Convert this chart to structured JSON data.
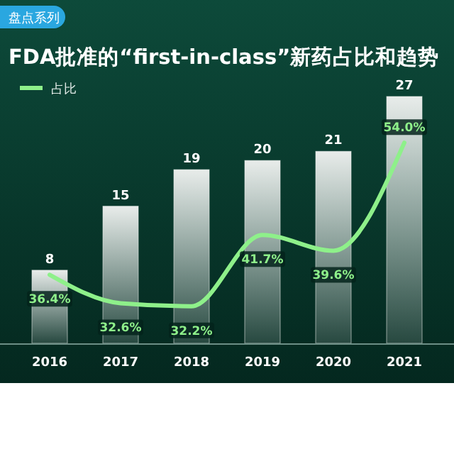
{
  "chart_data": {
    "type": "bar",
    "title": "FDA批准的“first-in-class”新药占比和趋势",
    "annotations": [
      "盘点系列"
    ],
    "categories": [
      "2016",
      "2017",
      "2018",
      "2019",
      "2020",
      "2021"
    ],
    "series": [
      {
        "color": "#e8ecea",
        "values": [
          8,
          15,
          19,
          20,
          21,
          27
        ]
      },
      {
        "type": "line",
        "name": "占比",
        "axis": "y2",
        "color": "#8ef08a",
        "values": [
          36.4,
          32.6,
          32.2,
          41.7,
          39.6,
          54.0
        ],
        "value_labels": [
          "36.4%",
          "32.6%",
          "32.2%",
          "41.7%",
          "39.6%",
          "54.0%"
        ]
      }
    ],
    "data_labels": true,
    "legend": "top left",
    "tick_labels": "x"
  }
}
